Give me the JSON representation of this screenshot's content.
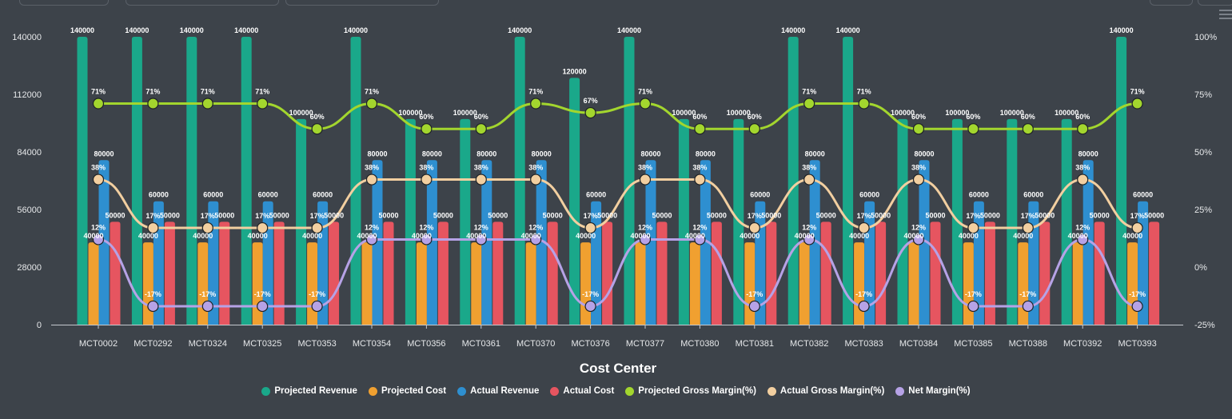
{
  "chart_data": {
    "type": "bar",
    "categories": [
      "MCT0002",
      "MCT0292",
      "MCT0324",
      "MCT0325",
      "MCT0353",
      "MCT0354",
      "MCT0356",
      "MCT0361",
      "MCT0370",
      "MCT0376",
      "MCT0377",
      "MCT0380",
      "MCT0381",
      "MCT0382",
      "MCT0383",
      "MCT0384",
      "MCT0385",
      "MCT0388",
      "MCT0392",
      "MCT0393"
    ],
    "xlabel": "Cost Center",
    "ylim": [
      0,
      140000
    ],
    "y_ticks": [
      "0",
      "28000",
      "56000",
      "84000",
      "112000",
      "140000"
    ],
    "y2lim": [
      -25,
      100
    ],
    "y2_ticks": [
      "-25%",
      "0%",
      "25%",
      "50%",
      "75%",
      "100%"
    ],
    "grid": false,
    "legend_position": "bottom",
    "series": [
      {
        "name": "Projected Revenue",
        "kind": "bar",
        "axis": "left",
        "color": "#1aa88a",
        "values": [
          140000,
          140000,
          140000,
          140000,
          100000,
          140000,
          100000,
          100000,
          140000,
          120000,
          140000,
          100000,
          100000,
          140000,
          140000,
          100000,
          100000,
          100000,
          100000,
          140000
        ],
        "labels": [
          "140000",
          "140000",
          "140000",
          "140000",
          "100000",
          "140000",
          "100000",
          "100000",
          "140000",
          "120000",
          "140000",
          "100000",
          "100000",
          "140000",
          "140000",
          "100000",
          "100000",
          "100000",
          "100000",
          "140000"
        ]
      },
      {
        "name": "Projected Cost",
        "kind": "bar",
        "axis": "left",
        "color": "#f0a030",
        "values": [
          40000,
          40000,
          40000,
          40000,
          40000,
          40000,
          40000,
          40000,
          40000,
          40000,
          40000,
          40000,
          40000,
          40000,
          40000,
          40000,
          40000,
          40000,
          40000,
          40000
        ],
        "labels": [
          "40000",
          "40000",
          "40000",
          "40000",
          "40000",
          "40000",
          "40000",
          "40000",
          "40000",
          "40000",
          "40000",
          "40000",
          "40000",
          "40000",
          "40000",
          "40000",
          "40000",
          "40000",
          "40000",
          "40000"
        ]
      },
      {
        "name": "Actual Revenue",
        "kind": "bar",
        "axis": "left",
        "color": "#2e8fd0",
        "values": [
          80000,
          60000,
          60000,
          60000,
          60000,
          80000,
          80000,
          80000,
          80000,
          60000,
          80000,
          80000,
          60000,
          80000,
          60000,
          80000,
          60000,
          60000,
          80000,
          60000
        ],
        "labels": [
          "80000",
          "60000",
          "60000",
          "60000",
          "60000",
          "80000",
          "80000",
          "80000",
          "80000",
          "60000",
          "80000",
          "80000",
          "60000",
          "80000",
          "60000",
          "80000",
          "60000",
          "60000",
          "80000",
          "60000"
        ]
      },
      {
        "name": "Actual Cost",
        "kind": "bar",
        "axis": "left",
        "color": "#e65560",
        "values": [
          50000,
          50000,
          50000,
          50000,
          50000,
          50000,
          50000,
          50000,
          50000,
          50000,
          50000,
          50000,
          50000,
          50000,
          50000,
          50000,
          50000,
          50000,
          50000,
          50000
        ],
        "labels": [
          "50000",
          "50000",
          "50000",
          "50000",
          "50000",
          "50000",
          "50000",
          "50000",
          "50000",
          "50000",
          "50000",
          "50000",
          "50000",
          "50000",
          "50000",
          "50000",
          "50000",
          "50000",
          "50000",
          "50000"
        ]
      },
      {
        "name": "Projected Gross Margin(%)",
        "kind": "line",
        "axis": "right",
        "color": "#a3d62e",
        "values": [
          71,
          71,
          71,
          71,
          60,
          71,
          60,
          60,
          71,
          67,
          71,
          60,
          60,
          71,
          71,
          60,
          60,
          60,
          60,
          71
        ],
        "labels": [
          "71%",
          "71%",
          "71%",
          "71%",
          "60%",
          "71%",
          "60%",
          "60%",
          "71%",
          "67%",
          "71%",
          "60%",
          "60%",
          "71%",
          "71%",
          "60%",
          "60%",
          "60%",
          "60%",
          "71%"
        ]
      },
      {
        "name": "Actual Gross Margin(%)",
        "kind": "line",
        "axis": "right",
        "color": "#f2cfa0",
        "values": [
          38,
          17,
          17,
          17,
          17,
          38,
          38,
          38,
          38,
          17,
          38,
          38,
          17,
          38,
          17,
          38,
          17,
          17,
          38,
          17
        ],
        "labels": [
          "38%",
          "17%",
          "17%",
          "17%",
          "17%",
          "38%",
          "38%",
          "38%",
          "38%",
          "17%",
          "38%",
          "38%",
          "17%",
          "38%",
          "17%",
          "38%",
          "17%",
          "17%",
          "38%",
          "17%"
        ]
      },
      {
        "name": "Net Margin(%)",
        "kind": "line",
        "axis": "right",
        "color": "#b6a2e6",
        "values": [
          12,
          -17,
          -17,
          -17,
          -17,
          12,
          12,
          12,
          12,
          -17,
          12,
          12,
          -17,
          12,
          -17,
          12,
          -17,
          -17,
          12,
          -17
        ],
        "labels": [
          "12%",
          "-17%",
          "-17%",
          "-17%",
          "-17%",
          "12%",
          "12%",
          "12%",
          "12%",
          "-17%",
          "12%",
          "12%",
          "-17%",
          "12%",
          "-17%",
          "12%",
          "-17%",
          "-17%",
          "12%",
          "-17%"
        ]
      }
    ]
  }
}
